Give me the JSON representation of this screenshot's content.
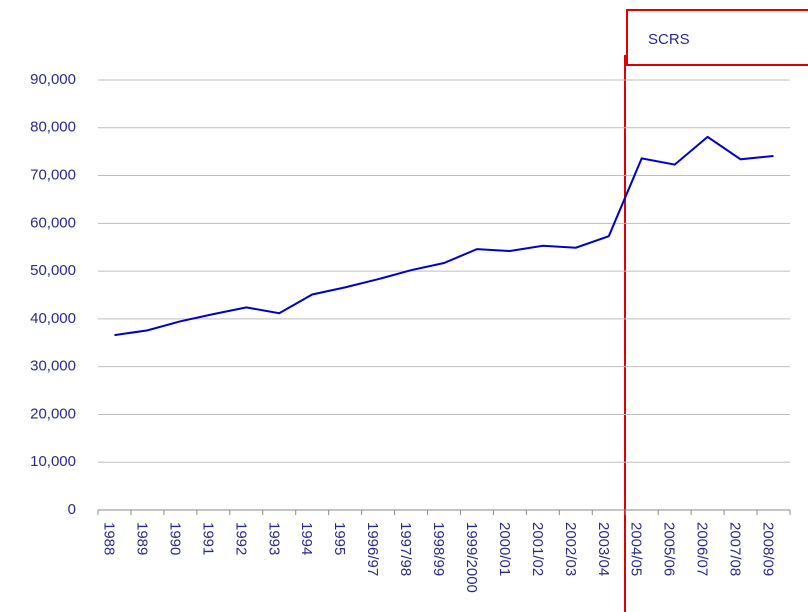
{
  "chart_data": {
    "type": "line",
    "annotation": "SCRS",
    "categories": [
      "1988",
      "1989",
      "1990",
      "1991",
      "1992",
      "1993",
      "1994",
      "1995",
      "1996/97",
      "1997/98",
      "1998/99",
      "1999/2000",
      "2000/01",
      "2001/02",
      "2002/03",
      "2003/04",
      "2004/05",
      "2005/06",
      "2006/07",
      "2007/08",
      "2008/09"
    ],
    "values": [
      36600,
      37600,
      39500,
      41000,
      42400,
      41200,
      45100,
      46600,
      48300,
      50200,
      51700,
      54600,
      54200,
      55300,
      54900,
      57300,
      73600,
      72300,
      78100,
      73400,
      74100
    ],
    "color": "#0000cc",
    "ylim": [
      0,
      90000
    ],
    "yticks": [
      0,
      {
        "value": 10000,
        "label": "10,000"
      },
      {
        "value": 20000,
        "label": "20,000"
      },
      {
        "value": 30000,
        "label": "30,000"
      },
      {
        "value": 40000,
        "label": "40,000"
      },
      {
        "value": 50000,
        "label": "50,000"
      },
      {
        "value": 60000,
        "label": "60,000"
      },
      {
        "value": 70000,
        "label": "70,000"
      },
      {
        "value": 80000,
        "label": "80,000"
      },
      {
        "value": 90000,
        "label": "90,000"
      }
    ],
    "grid": true
  }
}
